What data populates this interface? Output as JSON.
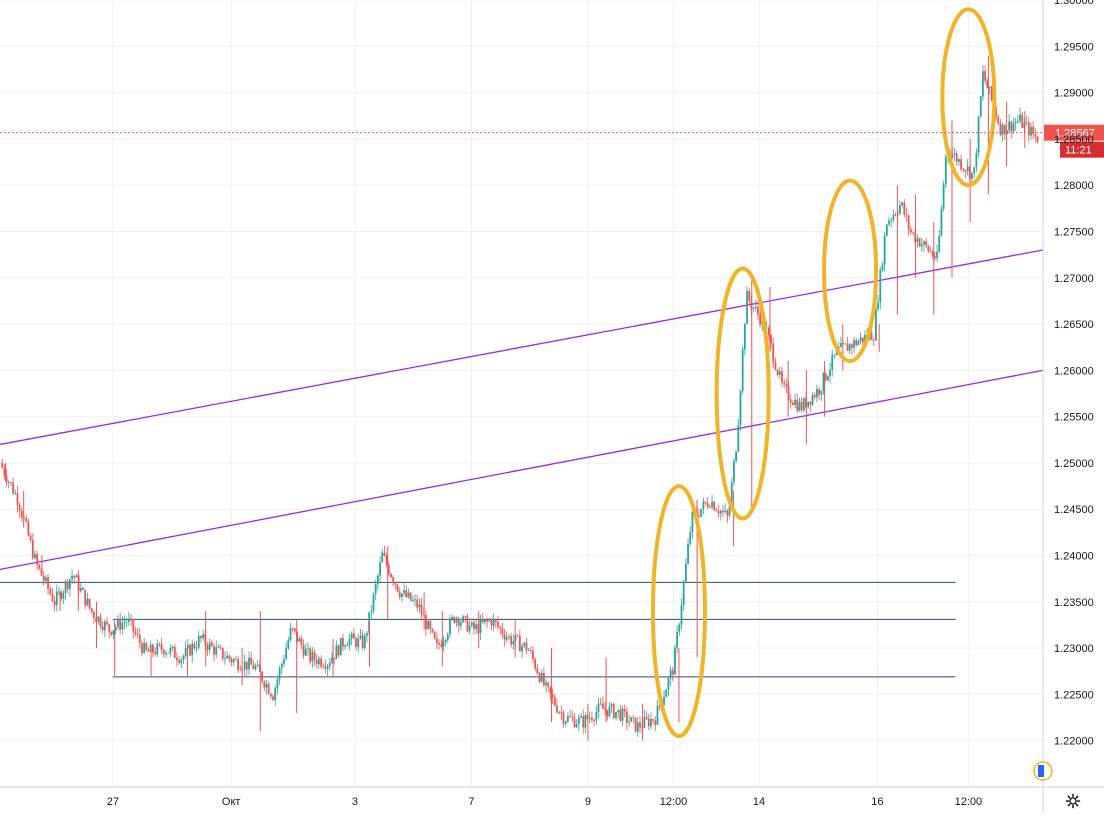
{
  "chart_data": {
    "type": "candlestick",
    "colors": {
      "up": "#26a69a",
      "down": "#ef5350",
      "grid": "#eef0f3",
      "axis": "#d1d4dc",
      "channel": "#9c27e6",
      "level": "#2a4a7f",
      "highlight": "#f0b429",
      "price_line": "#ef5350",
      "price_badge": "#ef5350",
      "time_badge": "#d32f2f"
    },
    "y_ticks": [
      "1.22000",
      "1.22500",
      "1.23000",
      "1.23500",
      "1.24000",
      "1.24500",
      "1.25000",
      "1.25500",
      "1.26000",
      "1.26500",
      "1.27000",
      "1.27500",
      "1.28000",
      "1.28500",
      "1.29000",
      "1.29500",
      "1.30000"
    ],
    "ylim": [
      1.215,
      1.3
    ],
    "x_ticks": [
      "27",
      "Окт",
      "3",
      "7",
      "9",
      "12:00",
      "14",
      "16",
      "12:00"
    ],
    "x_tick_index": [
      6.2,
      12.7,
      19.5,
      25.9,
      32.3,
      37.0,
      41.7,
      48.2,
      53.2
    ],
    "x_count": 57.3,
    "current_price": "1.28567",
    "current_price_value": 1.28567,
    "countdown": "11:21",
    "close_path": [
      [
        0,
        1.25
      ],
      [
        1,
        1.246
      ],
      [
        2,
        1.239
      ],
      [
        3,
        1.235
      ],
      [
        4,
        1.238
      ],
      [
        5,
        1.234
      ],
      [
        6,
        1.232
      ],
      [
        7,
        1.233
      ],
      [
        8,
        1.2295
      ],
      [
        9,
        1.23
      ],
      [
        10,
        1.229
      ],
      [
        11,
        1.231
      ],
      [
        12,
        1.2295
      ],
      [
        13,
        1.2285
      ],
      [
        14,
        1.228
      ],
      [
        15,
        1.225
      ],
      [
        16,
        1.232
      ],
      [
        17,
        1.229
      ],
      [
        18,
        1.2285
      ],
      [
        19,
        1.231
      ],
      [
        20,
        1.2305
      ],
      [
        21,
        1.24
      ],
      [
        22,
        1.236
      ],
      [
        23,
        1.2345
      ],
      [
        24,
        1.23
      ],
      [
        25,
        1.2335
      ],
      [
        26,
        1.232
      ],
      [
        27,
        1.233
      ],
      [
        28,
        1.231
      ],
      [
        29,
        1.23
      ],
      [
        30,
        1.2255
      ],
      [
        31,
        1.2225
      ],
      [
        32,
        1.222
      ],
      [
        33,
        1.2235
      ],
      [
        34,
        1.223
      ],
      [
        35,
        1.2215
      ],
      [
        36,
        1.2225
      ],
      [
        37,
        1.228
      ],
      [
        38,
        1.244
      ],
      [
        39,
        1.246
      ],
      [
        40,
        1.244
      ],
      [
        40.5,
        1.253
      ],
      [
        41,
        1.268
      ],
      [
        42,
        1.265
      ],
      [
        43,
        1.258
      ],
      [
        44,
        1.256
      ],
      [
        45,
        1.258
      ],
      [
        46,
        1.262
      ],
      [
        47,
        1.263
      ],
      [
        48,
        1.264
      ],
      [
        48.7,
        1.276
      ],
      [
        49.5,
        1.278
      ],
      [
        50,
        1.275
      ],
      [
        51,
        1.273
      ],
      [
        51.5,
        1.272
      ],
      [
        52,
        1.284
      ],
      [
        53,
        1.282
      ],
      [
        53.5,
        1.281
      ],
      [
        54,
        1.292
      ],
      [
        55,
        1.286
      ],
      [
        56,
        1.287
      ],
      [
        57,
        1.285
      ]
    ],
    "spikes": [
      [
        0,
        1.25,
        1.248
      ],
      [
        1,
        1.247,
        1.243
      ],
      [
        2,
        1.24,
        1.238
      ],
      [
        3,
        1.236,
        1.234
      ],
      [
        4,
        1.238,
        1.234
      ],
      [
        5,
        1.235,
        1.23
      ],
      [
        6,
        1.233,
        1.227
      ],
      [
        8,
        1.23,
        1.227
      ],
      [
        10,
        1.23,
        1.227
      ],
      [
        11,
        1.234,
        1.228
      ],
      [
        13,
        1.23,
        1.226
      ],
      [
        14,
        1.234,
        1.221
      ],
      [
        16,
        1.233,
        1.223
      ],
      [
        18,
        1.231,
        1.227
      ],
      [
        20,
        1.233,
        1.228
      ],
      [
        21,
        1.241,
        1.233
      ],
      [
        23,
        1.236,
        1.232
      ],
      [
        24,
        1.234,
        1.228
      ],
      [
        26,
        1.234,
        1.23
      ],
      [
        28,
        1.233,
        1.229
      ],
      [
        30,
        1.23,
        1.222
      ],
      [
        32,
        1.224,
        1.22
      ],
      [
        33,
        1.229,
        1.222
      ],
      [
        35,
        1.224,
        1.22
      ],
      [
        37,
        1.23,
        1.222
      ],
      [
        38,
        1.246,
        1.229
      ],
      [
        40,
        1.247,
        1.241
      ],
      [
        41,
        1.27,
        1.245
      ],
      [
        42,
        1.269,
        1.262
      ],
      [
        43,
        1.261,
        1.255
      ],
      [
        44,
        1.26,
        1.252
      ],
      [
        45,
        1.261,
        1.255
      ],
      [
        46,
        1.265,
        1.26
      ],
      [
        48,
        1.265,
        1.262
      ],
      [
        49,
        1.28,
        1.266
      ],
      [
        50,
        1.279,
        1.27
      ],
      [
        51,
        1.276,
        1.266
      ],
      [
        52,
        1.287,
        1.27
      ],
      [
        53,
        1.285,
        1.276
      ],
      [
        54,
        1.294,
        1.279
      ],
      [
        55,
        1.289,
        1.282
      ],
      [
        56,
        1.288,
        1.284
      ]
    ],
    "channel_lines": [
      {
        "from": [
          0,
          1.252
        ],
        "to": [
          57.3,
          1.273
        ]
      },
      {
        "from": [
          0,
          1.2385
        ],
        "to": [
          57.3,
          1.26
        ]
      }
    ],
    "horizontal_levels": [
      {
        "price": 1.2371,
        "from": 0,
        "to": 52.5
      },
      {
        "price": 1.2331,
        "from": 6.2,
        "to": 52.5
      },
      {
        "price": 1.2269,
        "from": 6.2,
        "to": 52.5
      }
    ],
    "highlight_ellipses": [
      {
        "index": 37.3,
        "price_low": 1.2205,
        "price_high": 1.2475
      },
      {
        "index": 40.8,
        "price_low": 1.244,
        "price_high": 1.271
      },
      {
        "index": 46.7,
        "price_low": 1.261,
        "price_high": 1.2805
      },
      {
        "index": 53.2,
        "price_low": 1.28,
        "price_high": 1.299
      }
    ]
  },
  "ui": {
    "settings_icon": "gear-icon",
    "logo_icon": "tradingview-logo"
  }
}
